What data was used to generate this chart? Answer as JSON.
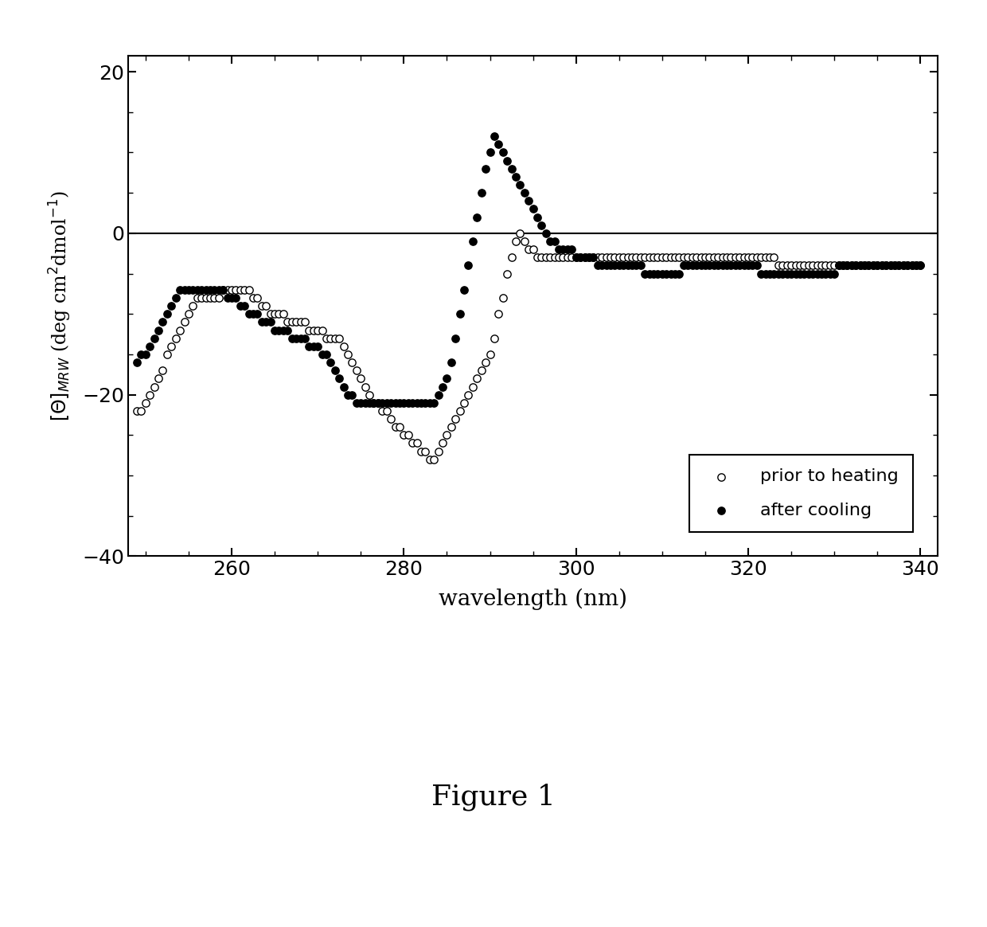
{
  "xlabel": "wavelength (nm)",
  "xlim": [
    248,
    342
  ],
  "ylim": [
    -40,
    22
  ],
  "xticks": [
    260,
    280,
    300,
    320,
    340
  ],
  "yticks": [
    -40,
    -20,
    0,
    20
  ],
  "figure_label": "Figure 1",
  "legend_labels": [
    "prior to heating",
    "after cooling"
  ],
  "hline_y": 0,
  "open_color": "white",
  "filled_color": "black",
  "edge_color": "black",
  "background": "white",
  "open_x": [
    249.0,
    249.5,
    250.0,
    250.5,
    251.0,
    251.5,
    252.0,
    252.5,
    253.0,
    253.5,
    254.0,
    254.5,
    255.0,
    255.5,
    256.0,
    256.5,
    257.0,
    257.5,
    258.0,
    258.5,
    259.0,
    259.5,
    260.0,
    260.5,
    261.0,
    261.5,
    262.0,
    262.5,
    263.0,
    263.5,
    264.0,
    264.5,
    265.0,
    265.5,
    266.0,
    266.5,
    267.0,
    267.5,
    268.0,
    268.5,
    269.0,
    269.5,
    270.0,
    270.5,
    271.0,
    271.5,
    272.0,
    272.5,
    273.0,
    273.5,
    274.0,
    274.5,
    275.0,
    275.5,
    276.0,
    276.5,
    277.0,
    277.5,
    278.0,
    278.5,
    279.0,
    279.5,
    280.0,
    280.5,
    281.0,
    281.5,
    282.0,
    282.5,
    283.0,
    283.5,
    284.0,
    284.5,
    285.0,
    285.5,
    286.0,
    286.5,
    287.0,
    287.5,
    288.0,
    288.5,
    289.0,
    289.5,
    290.0,
    290.5,
    291.0,
    291.5,
    292.0,
    292.5,
    293.0,
    293.5,
    294.0,
    294.5,
    295.0,
    295.5,
    296.0,
    296.5,
    297.0,
    297.5,
    298.0,
    298.5,
    299.0,
    299.5,
    300.0,
    300.5,
    301.0,
    301.5,
    302.0,
    302.5,
    303.0,
    303.5,
    304.0,
    304.5,
    305.0,
    305.5,
    306.0,
    306.5,
    307.0,
    307.5,
    308.0,
    308.5,
    309.0,
    309.5,
    310.0,
    310.5,
    311.0,
    311.5,
    312.0,
    312.5,
    313.0,
    313.5,
    314.0,
    314.5,
    315.0,
    315.5,
    316.0,
    316.5,
    317.0,
    317.5,
    318.0,
    318.5,
    319.0,
    319.5,
    320.0,
    320.5,
    321.0,
    321.5,
    322.0,
    322.5,
    323.0,
    323.5,
    324.0,
    324.5,
    325.0,
    325.5,
    326.0,
    326.5,
    327.0,
    327.5,
    328.0,
    328.5,
    329.0,
    329.5,
    330.0,
    330.5,
    331.0,
    331.5,
    332.0,
    332.5,
    333.0,
    333.5,
    334.0,
    334.5,
    335.0,
    335.5,
    336.0,
    336.5,
    337.0,
    337.5,
    338.0,
    338.5,
    339.0,
    339.5,
    340.0
  ],
  "open_y": [
    -22,
    -22,
    -21,
    -20,
    -19,
    -18,
    -17,
    -15,
    -14,
    -13,
    -12,
    -11,
    -10,
    -9,
    -8,
    -8,
    -8,
    -8,
    -8,
    -8,
    -7,
    -7,
    -7,
    -7,
    -7,
    -7,
    -7,
    -8,
    -8,
    -9,
    -9,
    -10,
    -10,
    -10,
    -10,
    -11,
    -11,
    -11,
    -11,
    -11,
    -12,
    -12,
    -12,
    -12,
    -13,
    -13,
    -13,
    -13,
    -14,
    -15,
    -16,
    -17,
    -18,
    -19,
    -20,
    -21,
    -21,
    -22,
    -22,
    -23,
    -24,
    -24,
    -25,
    -25,
    -26,
    -26,
    -27,
    -27,
    -28,
    -28,
    -27,
    -26,
    -25,
    -24,
    -23,
    -22,
    -21,
    -20,
    -19,
    -18,
    -17,
    -16,
    -15,
    -13,
    -10,
    -8,
    -5,
    -3,
    -1,
    0,
    -1,
    -2,
    -2,
    -3,
    -3,
    -3,
    -3,
    -3,
    -3,
    -3,
    -3,
    -3,
    -3,
    -3,
    -3,
    -3,
    -3,
    -3,
    -3,
    -3,
    -3,
    -3,
    -3,
    -3,
    -3,
    -3,
    -3,
    -3,
    -3,
    -3,
    -3,
    -3,
    -3,
    -3,
    -3,
    -3,
    -3,
    -3,
    -3,
    -3,
    -3,
    -3,
    -3,
    -3,
    -3,
    -3,
    -3,
    -3,
    -3,
    -3,
    -3,
    -3,
    -3,
    -3,
    -3,
    -3,
    -3,
    -3,
    -3,
    -4,
    -4,
    -4,
    -4,
    -4,
    -4,
    -4,
    -4,
    -4,
    -4,
    -4,
    -4,
    -4,
    -4,
    -4,
    -4,
    -4,
    -4,
    -4,
    -4,
    -4,
    -4,
    -4,
    -4,
    -4,
    -4,
    -4,
    -4,
    -4,
    -4,
    -4,
    -4,
    -4,
    -4
  ],
  "filled_x": [
    249.0,
    249.5,
    250.0,
    250.5,
    251.0,
    251.5,
    252.0,
    252.5,
    253.0,
    253.5,
    254.0,
    254.5,
    255.0,
    255.5,
    256.0,
    256.5,
    257.0,
    257.5,
    258.0,
    258.5,
    259.0,
    259.5,
    260.0,
    260.5,
    261.0,
    261.5,
    262.0,
    262.5,
    263.0,
    263.5,
    264.0,
    264.5,
    265.0,
    265.5,
    266.0,
    266.5,
    267.0,
    267.5,
    268.0,
    268.5,
    269.0,
    269.5,
    270.0,
    270.5,
    271.0,
    271.5,
    272.0,
    272.5,
    273.0,
    273.5,
    274.0,
    274.5,
    275.0,
    275.5,
    276.0,
    276.5,
    277.0,
    277.5,
    278.0,
    278.5,
    279.0,
    279.5,
    280.0,
    280.5,
    281.0,
    281.5,
    282.0,
    282.5,
    283.0,
    283.5,
    284.0,
    284.5,
    285.0,
    285.5,
    286.0,
    286.5,
    287.0,
    287.5,
    288.0,
    288.5,
    289.0,
    289.5,
    290.0,
    290.5,
    291.0,
    291.5,
    292.0,
    292.5,
    293.0,
    293.5,
    294.0,
    294.5,
    295.0,
    295.5,
    296.0,
    296.5,
    297.0,
    297.5,
    298.0,
    298.5,
    299.0,
    299.5,
    300.0,
    300.5,
    301.0,
    301.5,
    302.0,
    302.5,
    303.0,
    303.5,
    304.0,
    304.5,
    305.0,
    305.5,
    306.0,
    306.5,
    307.0,
    307.5,
    308.0,
    308.5,
    309.0,
    309.5,
    310.0,
    310.5,
    311.0,
    311.5,
    312.0,
    312.5,
    313.0,
    313.5,
    314.0,
    314.5,
    315.0,
    315.5,
    316.0,
    316.5,
    317.0,
    317.5,
    318.0,
    318.5,
    319.0,
    319.5,
    320.0,
    320.5,
    321.0,
    321.5,
    322.0,
    322.5,
    323.0,
    323.5,
    324.0,
    324.5,
    325.0,
    325.5,
    326.0,
    326.5,
    327.0,
    327.5,
    328.0,
    328.5,
    329.0,
    329.5,
    330.0,
    330.5,
    331.0,
    331.5,
    332.0,
    332.5,
    333.0,
    333.5,
    334.0,
    334.5,
    335.0,
    335.5,
    336.0,
    336.5,
    337.0,
    337.5,
    338.0,
    338.5,
    339.0,
    339.5,
    340.0
  ],
  "filled_y": [
    -16,
    -15,
    -15,
    -14,
    -13,
    -12,
    -11,
    -10,
    -9,
    -8,
    -7,
    -7,
    -7,
    -7,
    -7,
    -7,
    -7,
    -7,
    -7,
    -7,
    -7,
    -8,
    -8,
    -8,
    -9,
    -9,
    -10,
    -10,
    -10,
    -11,
    -11,
    -11,
    -12,
    -12,
    -12,
    -12,
    -13,
    -13,
    -13,
    -13,
    -14,
    -14,
    -14,
    -15,
    -15,
    -16,
    -17,
    -18,
    -19,
    -20,
    -20,
    -21,
    -21,
    -21,
    -21,
    -21,
    -21,
    -21,
    -21,
    -21,
    -21,
    -21,
    -21,
    -21,
    -21,
    -21,
    -21,
    -21,
    -21,
    -21,
    -20,
    -19,
    -18,
    -16,
    -13,
    -10,
    -7,
    -4,
    -1,
    2,
    5,
    8,
    10,
    12,
    11,
    10,
    9,
    8,
    7,
    6,
    5,
    4,
    3,
    2,
    1,
    0,
    -1,
    -1,
    -2,
    -2,
    -2,
    -2,
    -3,
    -3,
    -3,
    -3,
    -3,
    -4,
    -4,
    -4,
    -4,
    -4,
    -4,
    -4,
    -4,
    -4,
    -4,
    -4,
    -5,
    -5,
    -5,
    -5,
    -5,
    -5,
    -5,
    -5,
    -5,
    -4,
    -4,
    -4,
    -4,
    -4,
    -4,
    -4,
    -4,
    -4,
    -4,
    -4,
    -4,
    -4,
    -4,
    -4,
    -4,
    -4,
    -4,
    -5,
    -5,
    -5,
    -5,
    -5,
    -5,
    -5,
    -5,
    -5,
    -5,
    -5,
    -5,
    -5,
    -5,
    -5,
    -5,
    -5,
    -5,
    -4,
    -4,
    -4,
    -4,
    -4,
    -4,
    -4,
    -4,
    -4,
    -4,
    -4,
    -4,
    -4,
    -4,
    -4,
    -4,
    -4,
    -4,
    -4,
    -4
  ]
}
